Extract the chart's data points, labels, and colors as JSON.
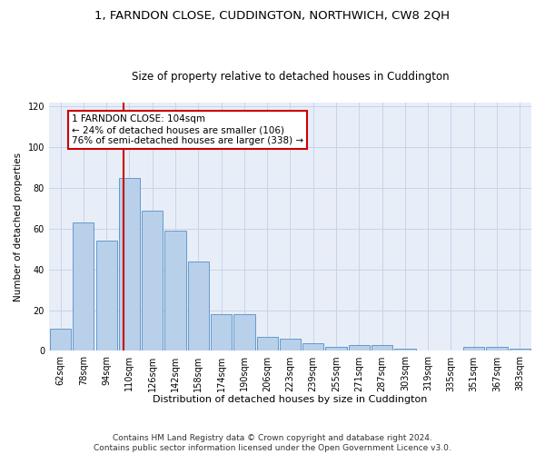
{
  "title": "1, FARNDON CLOSE, CUDDINGTON, NORTHWICH, CW8 2QH",
  "subtitle": "Size of property relative to detached houses in Cuddington",
  "xlabel": "Distribution of detached houses by size in Cuddington",
  "ylabel": "Number of detached properties",
  "categories": [
    "62sqm",
    "78sqm",
    "94sqm",
    "110sqm",
    "126sqm",
    "142sqm",
    "158sqm",
    "174sqm",
    "190sqm",
    "206sqm",
    "223sqm",
    "239sqm",
    "255sqm",
    "271sqm",
    "287sqm",
    "303sqm",
    "319sqm",
    "335sqm",
    "351sqm",
    "367sqm",
    "383sqm"
  ],
  "values": [
    11,
    63,
    54,
    85,
    69,
    59,
    44,
    18,
    18,
    7,
    6,
    4,
    2,
    3,
    3,
    1,
    0,
    0,
    2,
    2,
    1
  ],
  "bar_color": "#b8d0ea",
  "bar_edge_color": "#6699cc",
  "vline_color": "#cc0000",
  "annotation_text": "1 FARNDON CLOSE: 104sqm\n← 24% of detached houses are smaller (106)\n76% of semi-detached houses are larger (338) →",
  "annotation_box_color": "#ffffff",
  "annotation_box_edge_color": "#cc0000",
  "ylim": [
    0,
    122
  ],
  "yticks": [
    0,
    20,
    40,
    60,
    80,
    100,
    120
  ],
  "grid_color": "#c8d4e8",
  "background_color": "#e8eef8",
  "footer_line1": "Contains HM Land Registry data © Crown copyright and database right 2024.",
  "footer_line2": "Contains public sector information licensed under the Open Government Licence v3.0.",
  "title_fontsize": 9.5,
  "subtitle_fontsize": 8.5,
  "xlabel_fontsize": 8,
  "ylabel_fontsize": 7.5,
  "tick_fontsize": 7,
  "annotation_fontsize": 7.5,
  "footer_fontsize": 6.5
}
